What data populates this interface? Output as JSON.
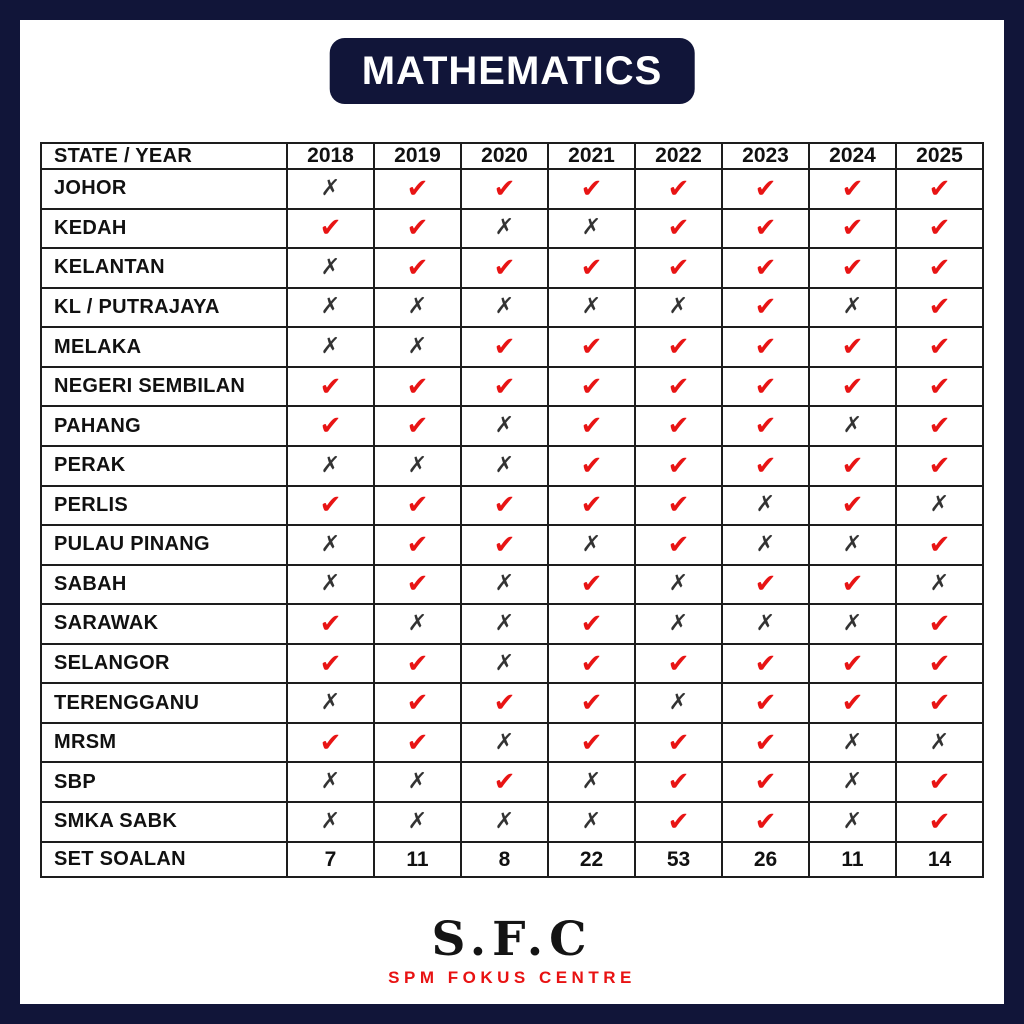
{
  "title": "MATHEMATICS",
  "icons": {
    "check": "✔",
    "cross": "✗"
  },
  "colors": {
    "navy_frame": "#111539",
    "check_red": "#e81414",
    "cross_dark": "#333333",
    "grid_line": "#1d1d1d",
    "tagline_red": "#e81212"
  },
  "chart_data": {
    "type": "table",
    "title": "MATHEMATICS",
    "corner_header": "STATE / YEAR",
    "columns": [
      "2018",
      "2019",
      "2020",
      "2021",
      "2022",
      "2023",
      "2024",
      "2025"
    ],
    "rows": [
      {
        "label": "JOHOR",
        "values": [
          "cross",
          "check",
          "check",
          "check",
          "check",
          "check",
          "check",
          "check"
        ]
      },
      {
        "label": "KEDAH",
        "values": [
          "check",
          "check",
          "cross",
          "cross",
          "check",
          "check",
          "check",
          "check"
        ]
      },
      {
        "label": "KELANTAN",
        "values": [
          "cross",
          "check",
          "check",
          "check",
          "check",
          "check",
          "check",
          "check"
        ]
      },
      {
        "label": "KL / PUTRAJAYA",
        "values": [
          "cross",
          "cross",
          "cross",
          "cross",
          "cross",
          "check",
          "cross",
          "check"
        ]
      },
      {
        "label": "MELAKA",
        "values": [
          "cross",
          "cross",
          "check",
          "check",
          "check",
          "check",
          "check",
          "check"
        ]
      },
      {
        "label": "NEGERI SEMBILAN",
        "values": [
          "check",
          "check",
          "check",
          "check",
          "check",
          "check",
          "check",
          "check"
        ]
      },
      {
        "label": "PAHANG",
        "values": [
          "check",
          "check",
          "cross",
          "check",
          "check",
          "check",
          "cross",
          "check"
        ]
      },
      {
        "label": "PERAK",
        "values": [
          "cross",
          "cross",
          "cross",
          "check",
          "check",
          "check",
          "check",
          "check"
        ]
      },
      {
        "label": "PERLIS",
        "values": [
          "check",
          "check",
          "check",
          "check",
          "check",
          "cross",
          "check",
          "cross"
        ]
      },
      {
        "label": "PULAU PINANG",
        "values": [
          "cross",
          "check",
          "check",
          "cross",
          "check",
          "cross",
          "cross",
          "check"
        ]
      },
      {
        "label": "SABAH",
        "values": [
          "cross",
          "check",
          "cross",
          "check",
          "cross",
          "check",
          "check",
          "cross"
        ]
      },
      {
        "label": "SARAWAK",
        "values": [
          "check",
          "cross",
          "cross",
          "check",
          "cross",
          "cross",
          "cross",
          "check"
        ]
      },
      {
        "label": "SELANGOR",
        "values": [
          "check",
          "check",
          "cross",
          "check",
          "check",
          "check",
          "check",
          "check"
        ]
      },
      {
        "label": "TERENGGANU",
        "values": [
          "cross",
          "check",
          "check",
          "check",
          "cross",
          "check",
          "check",
          "check"
        ]
      },
      {
        "label": "MRSM",
        "values": [
          "check",
          "check",
          "cross",
          "check",
          "check",
          "check",
          "cross",
          "cross"
        ]
      },
      {
        "label": "SBP",
        "values": [
          "cross",
          "cross",
          "check",
          "cross",
          "check",
          "check",
          "cross",
          "check"
        ]
      },
      {
        "label": "SMKA SABK",
        "values": [
          "cross",
          "cross",
          "cross",
          "cross",
          "check",
          "check",
          "cross",
          "check"
        ]
      },
      {
        "label": "SET SOALAN",
        "values": [
          "7",
          "11",
          "8",
          "22",
          "53",
          "26",
          "11",
          "14"
        ]
      }
    ]
  },
  "footer": {
    "logo_text": "S.F.C",
    "tagline": "SPM FOKUS CENTRE"
  }
}
